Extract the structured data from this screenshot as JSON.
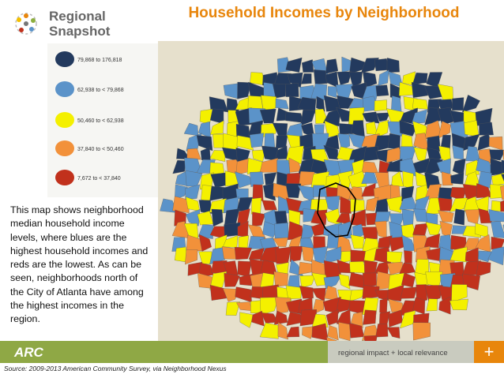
{
  "logo": {
    "line1": "Regional",
    "line2": "Snapshot"
  },
  "title": "Household Incomes by Neighborhood",
  "legend": [
    {
      "label": "79,868 to 176,818",
      "color": "#233a5e"
    },
    {
      "label": "62,938 to < 79,868",
      "color": "#5b93c9"
    },
    {
      "label": "50,460 to < 62,938",
      "color": "#f4f000"
    },
    {
      "label": "37,840 to < 50,460",
      "color": "#f2913a"
    },
    {
      "label": "7,672 to < 37,840",
      "color": "#c1311c"
    }
  ],
  "description": "This map shows neighborhood median household income levels, where blues are the highest household incomes and reds are the lowest. As can be seen, neighborhoods north of the City of Atlanta have among the highest incomes in the region.",
  "footer": {
    "logo": "ARC",
    "tagline": "regional impact + local relevance",
    "plus": "+"
  },
  "source": "Source: 2009-2013 American Community Survey, via Neighborhood Nexus"
}
